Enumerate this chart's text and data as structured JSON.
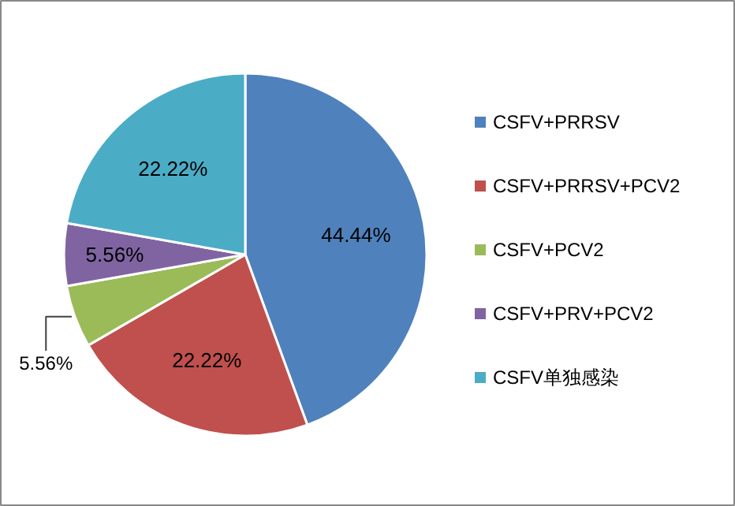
{
  "chart_data": {
    "type": "pie",
    "categories": [
      "CSFV+PRRSV",
      "CSFV+PRRSV+PCV2",
      "CSFV+PCV2",
      "CSFV+PRV+PCV2",
      "CSFV单独感染"
    ],
    "values": [
      44.44,
      22.22,
      5.56,
      5.56,
      22.22
    ],
    "colors": [
      "#4f81bd",
      "#c0504d",
      "#9bbb59",
      "#8064a2",
      "#4bacc6"
    ],
    "value_labels": [
      "44.44%",
      "22.22%",
      "5.56%",
      "5.56%",
      "22.22%"
    ],
    "legend": "right"
  }
}
